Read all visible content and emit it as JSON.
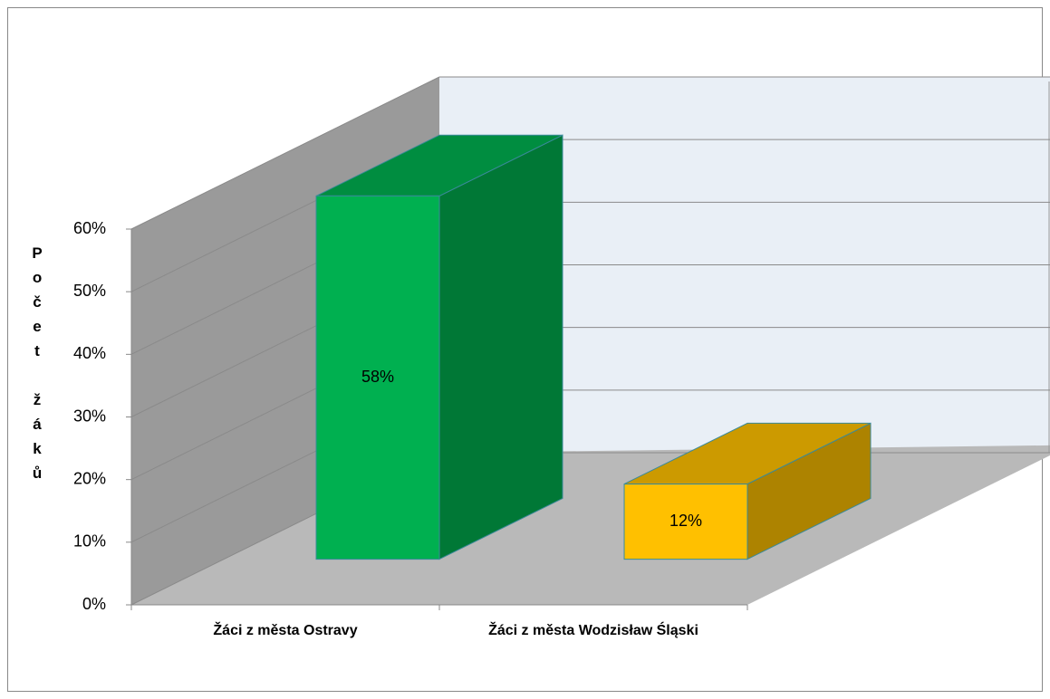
{
  "chart_data": {
    "type": "bar3d",
    "y_label": "Počet žáků",
    "categories": [
      "Žáci z města Ostravy",
      "Žáci z města Wodzisław Śląski"
    ],
    "values": [
      58,
      12
    ],
    "value_labels": [
      "58%",
      "12%"
    ],
    "colors": [
      "#00b050",
      "#ffc000"
    ],
    "ylim": [
      0,
      60
    ],
    "yticks": [
      {
        "value": 0,
        "label": "0%"
      },
      {
        "value": 10,
        "label": "10%"
      },
      {
        "value": 20,
        "label": "20%"
      },
      {
        "value": 30,
        "label": "30%"
      },
      {
        "value": 40,
        "label": "40%"
      },
      {
        "value": 50,
        "label": "50%"
      },
      {
        "value": 60,
        "label": "60%"
      }
    ],
    "grid": true
  }
}
